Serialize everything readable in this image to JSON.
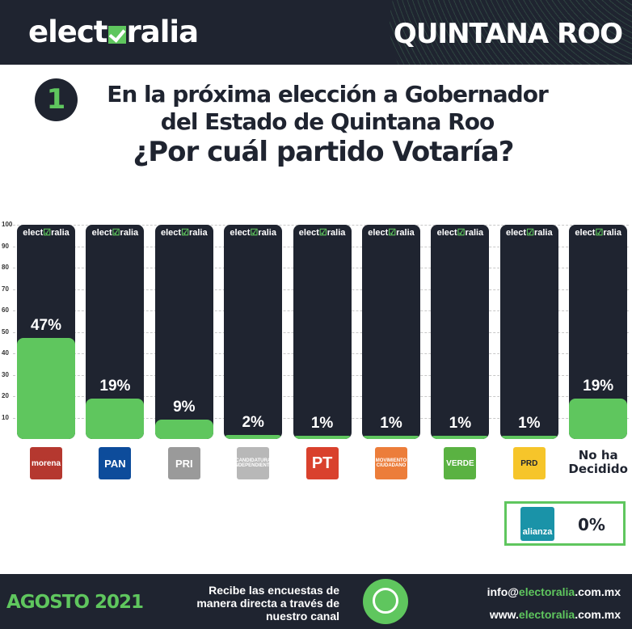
{
  "header": {
    "brand_prefix": "elect",
    "brand_suffix": "ralia",
    "state": "QUINTANA ROO"
  },
  "question": {
    "number": "1",
    "line1": "En la próxima elección a Gobernador del Estado de Quintana Roo",
    "line2": "¿Por cuál partido Votaría?"
  },
  "watermark": {
    "prefix": "elect",
    "mark": "☑",
    "suffix": "ralia"
  },
  "chart_data": {
    "type": "bar",
    "title": "¿Por cuál partido Votaría?",
    "xlabel": "",
    "ylabel": "",
    "ylim": [
      0,
      100
    ],
    "yticks": [
      "100",
      "90",
      "80",
      "70",
      "60",
      "50",
      "40",
      "30",
      "20",
      "10"
    ],
    "grid": true,
    "categories": [
      "MORENA",
      "PAN",
      "PRI",
      "Candidatura Independiente",
      "PT",
      "Movimiento Ciudadano",
      "Verde",
      "PRD",
      "No ha Decidido"
    ],
    "values": [
      47,
      19,
      9,
      2,
      1,
      1,
      1,
      1,
      19
    ],
    "labels": [
      "47%",
      "19%",
      "9%",
      "2%",
      "1%",
      "1%",
      "1%",
      "1%",
      "19%"
    ]
  },
  "parties": [
    {
      "name": "morena",
      "label": "morena",
      "color": "#b5382f"
    },
    {
      "name": "pan",
      "label": "PAN",
      "color": "#0d4c9b"
    },
    {
      "name": "pri",
      "label": "PRI",
      "color": "#9a9a9a"
    },
    {
      "name": "independiente",
      "label": "CANDIDATURA INDEPENDIENTE",
      "color": "#b8b8b8"
    },
    {
      "name": "pt",
      "label": "PT",
      "color": "#d9412d"
    },
    {
      "name": "mc",
      "label": "MOVIMIENTO CIUDADANO",
      "color": "#ec7d3a"
    },
    {
      "name": "verde",
      "label": "VERDE",
      "color": "#5ab242"
    },
    {
      "name": "prd",
      "label": "PRD",
      "color": "#f6c52a"
    },
    {
      "name": "no-decidido",
      "label": "No ha Decidido",
      "color": ""
    }
  ],
  "extra": {
    "party": "alianza",
    "value": "0%",
    "logo_color": "#1a93a8"
  },
  "footer": {
    "date": "AGOSTO 2021",
    "recibe": "Recibe las encuestas de manera directa a través de nuestro canal",
    "email_prefix": "info@",
    "email_domain": "electoralia",
    "email_suffix": ".com.mx",
    "web_prefix": "www.",
    "web_domain": "electoralia",
    "web_suffix": ".com.mx"
  },
  "colors": {
    "dark": "#1f2430",
    "green": "#5fc65e"
  }
}
